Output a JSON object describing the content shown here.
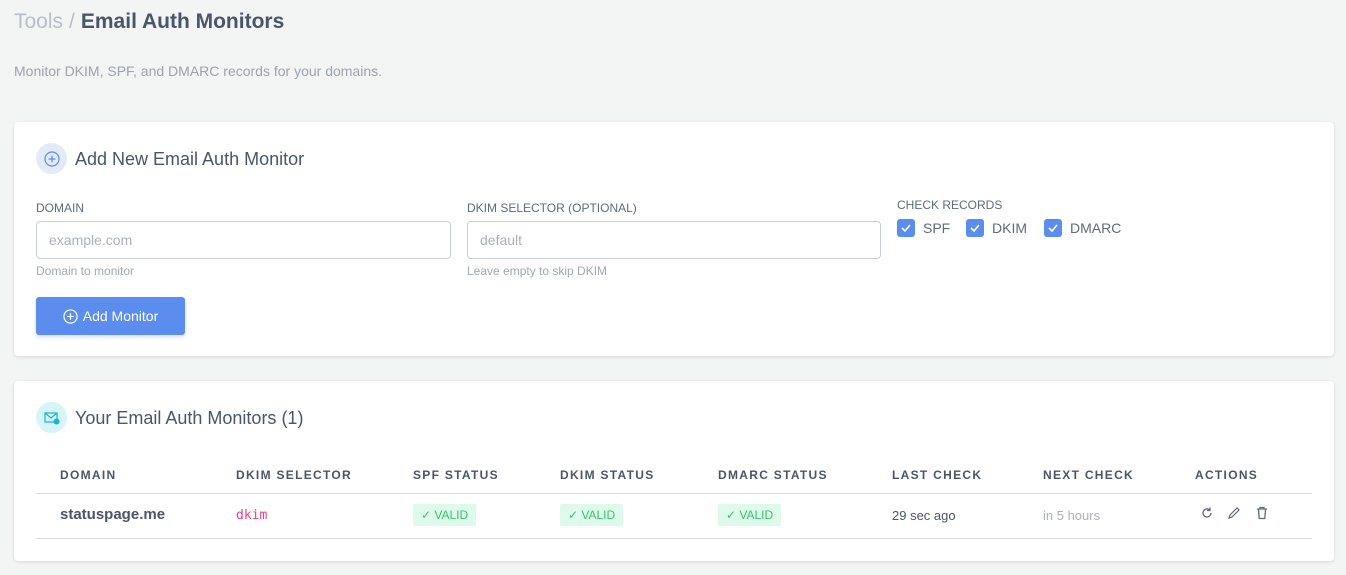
{
  "breadcrumb": {
    "parent": "Tools",
    "separator": "/",
    "current": "Email Auth Monitors"
  },
  "subtitle": "Monitor DKIM, SPF, and DMARC records for your domains.",
  "add_card": {
    "title": "Add New Email Auth Monitor",
    "domain": {
      "label": "DOMAIN",
      "placeholder": "example.com",
      "value": "",
      "hint": "Domain to monitor"
    },
    "selector": {
      "label": "DKIM SELECTOR (OPTIONAL)",
      "placeholder": "default",
      "value": "",
      "hint": "Leave empty to skip DKIM"
    },
    "check_records": {
      "label": "CHECK RECORDS",
      "options": [
        {
          "label": "SPF",
          "checked": true
        },
        {
          "label": "DKIM",
          "checked": true
        },
        {
          "label": "DMARC",
          "checked": true
        }
      ]
    },
    "button": "Add Monitor"
  },
  "list_card": {
    "title": "Your Email Auth Monitors (1)",
    "columns": [
      "DOMAIN",
      "DKIM SELECTOR",
      "SPF STATUS",
      "DKIM STATUS",
      "DMARC STATUS",
      "LAST CHECK",
      "NEXT CHECK",
      "ACTIONS"
    ],
    "rows": [
      {
        "domain": "statuspage.me",
        "selector": "dkim",
        "spf": "✓ VALID",
        "dkim": "✓ VALID",
        "dmarc": "✓ VALID",
        "last_check": "29 sec ago",
        "next_check": "in 5 hours",
        "actions": [
          "refresh-icon",
          "edit-icon",
          "trash-icon"
        ]
      }
    ]
  },
  "colors": {
    "accent": "#5b8def",
    "valid_bg": "#defaea",
    "valid_text": "#38c172",
    "selector": "#e83e8c"
  }
}
